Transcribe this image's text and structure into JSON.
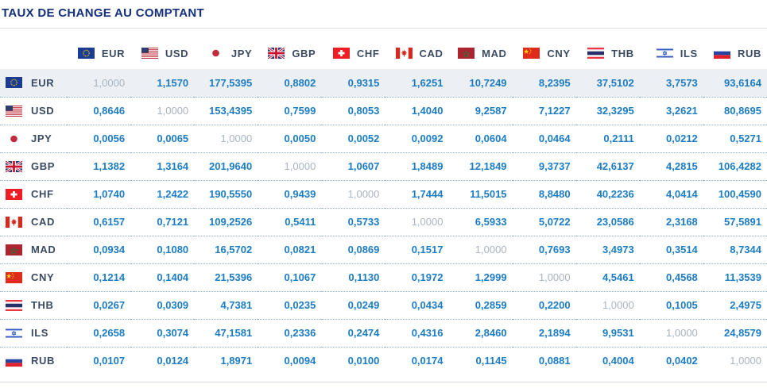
{
  "title": "TAUX DE CHANGE AU COMPTANT",
  "colors": {
    "title": "#14307c",
    "label": "#3a4a63",
    "value": "#1d7dc4",
    "diagonal": "#a9b4c1",
    "highlight_row_bg": "#eceff4",
    "dotted_separator": "#8fb3d2"
  },
  "table": {
    "highlighted_row": "EUR",
    "currencies": [
      {
        "code": "EUR",
        "flag": "flag-eur"
      },
      {
        "code": "USD",
        "flag": "flag-usd"
      },
      {
        "code": "JPY",
        "flag": "flag-jpy"
      },
      {
        "code": "GBP",
        "flag": "flag-gbp"
      },
      {
        "code": "CHF",
        "flag": "flag-chf"
      },
      {
        "code": "CAD",
        "flag": "flag-cad"
      },
      {
        "code": "MAD",
        "flag": "flag-mad"
      },
      {
        "code": "CNY",
        "flag": "flag-cny"
      },
      {
        "code": "THB",
        "flag": "flag-thb"
      },
      {
        "code": "ILS",
        "flag": "flag-ils"
      },
      {
        "code": "RUB",
        "flag": "flag-rub"
      }
    ],
    "rows": [
      {
        "code": "EUR",
        "flag": "flag-eur",
        "values": [
          "1,0000",
          "1,1570",
          "177,5395",
          "0,8802",
          "0,9315",
          "1,6251",
          "10,7249",
          "8,2395",
          "37,5102",
          "3,7573",
          "93,6164"
        ]
      },
      {
        "code": "USD",
        "flag": "flag-usd",
        "values": [
          "0,8646",
          "1,0000",
          "153,4395",
          "0,7599",
          "0,8053",
          "1,4040",
          "9,2587",
          "7,1227",
          "32,3295",
          "3,2621",
          "80,8695"
        ]
      },
      {
        "code": "JPY",
        "flag": "flag-jpy",
        "values": [
          "0,0056",
          "0,0065",
          "1,0000",
          "0,0050",
          "0,0052",
          "0,0092",
          "0,0604",
          "0,0464",
          "0,2111",
          "0,0212",
          "0,5271"
        ]
      },
      {
        "code": "GBP",
        "flag": "flag-gbp",
        "values": [
          "1,1382",
          "1,3164",
          "201,9640",
          "1,0000",
          "1,0607",
          "1,8489",
          "12,1849",
          "9,3737",
          "42,6137",
          "4,2815",
          "106,4282"
        ]
      },
      {
        "code": "CHF",
        "flag": "flag-chf",
        "values": [
          "1,0740",
          "1,2422",
          "190,5550",
          "0,9439",
          "1,0000",
          "1,7444",
          "11,5015",
          "8,8480",
          "40,2236",
          "4,0414",
          "100,4590"
        ]
      },
      {
        "code": "CAD",
        "flag": "flag-cad",
        "values": [
          "0,6157",
          "0,7121",
          "109,2526",
          "0,5411",
          "0,5733",
          "1,0000",
          "6,5933",
          "5,0722",
          "23,0586",
          "2,3168",
          "57,5891"
        ]
      },
      {
        "code": "MAD",
        "flag": "flag-mad",
        "values": [
          "0,0934",
          "0,1080",
          "16,5702",
          "0,0821",
          "0,0869",
          "0,1517",
          "1,0000",
          "0,7693",
          "3,4973",
          "0,3514",
          "8,7344"
        ]
      },
      {
        "code": "CNY",
        "flag": "flag-cny",
        "values": [
          "0,1214",
          "0,1404",
          "21,5396",
          "0,1067",
          "0,1130",
          "0,1972",
          "1,2999",
          "1,0000",
          "4,5461",
          "0,4568",
          "11,3539"
        ]
      },
      {
        "code": "THB",
        "flag": "flag-thb",
        "values": [
          "0,0267",
          "0,0309",
          "4,7381",
          "0,0235",
          "0,0249",
          "0,0434",
          "0,2859",
          "0,2200",
          "1,0000",
          "0,1005",
          "2,4975"
        ]
      },
      {
        "code": "ILS",
        "flag": "flag-ils",
        "values": [
          "0,2658",
          "0,3074",
          "47,1581",
          "0,2336",
          "0,2474",
          "0,4316",
          "2,8460",
          "2,1894",
          "9,9531",
          "1,0000",
          "24,8579"
        ]
      },
      {
        "code": "RUB",
        "flag": "flag-rub",
        "values": [
          "0,0107",
          "0,0124",
          "1,8971",
          "0,0094",
          "0,0100",
          "0,0174",
          "0,1145",
          "0,0881",
          "0,4004",
          "0,0402",
          "1,0000"
        ]
      }
    ]
  }
}
